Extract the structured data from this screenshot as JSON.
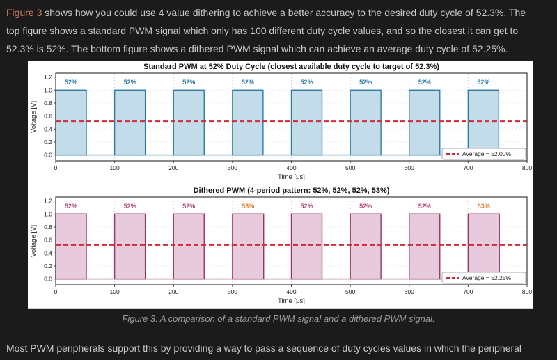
{
  "page": {
    "background": "#1b1b1b",
    "text_color": "#c9c9c9",
    "link_color": "#cd7d5f"
  },
  "intro_paragraph": {
    "link_text": "Figure 3",
    "line1_rest": " shows how you could use 4 value dithering to achieve a better accuracy to the desired duty cycle of 52.3%. The",
    "line2": "top figure shows a standard PWM signal which only has 100 different duty cycle values, and so the closest it can get to",
    "line3": "52.3% is 52%. The bottom figure shows a dithered PWM signal which can achieve an average duty cycle of 52.25%."
  },
  "figure_caption": "Figure 3: A comparison of a standard PWM signal and a dithered PWM signal.",
  "outro_paragraph": "Most PWM peripherals support this by providing a way to pass a sequence of duty cycles values in which the peripheral",
  "chart_data": [
    {
      "type": "line",
      "subtype": "pwm-square-wave",
      "title": "Standard PWM at 52% Duty Cycle (closest available duty cycle to target of 52.3%)",
      "xlabel": "Time [μs]",
      "ylabel": "Voltage [V]",
      "xlim": [
        0,
        800
      ],
      "ylim": [
        -0.09,
        1.26
      ],
      "xticks": [
        0,
        100,
        200,
        300,
        400,
        500,
        600,
        700,
        800
      ],
      "yticks": [
        0.0,
        0.2,
        0.4,
        0.6,
        0.8,
        1.0,
        1.2
      ],
      "grid": true,
      "period_us": 100,
      "high_v": 1.0,
      "low_v": 0.0,
      "duty_cycles_pct": [
        52,
        52,
        52,
        52,
        52,
        52,
        52,
        52
      ],
      "pulse_labels": [
        "52%",
        "52%",
        "52%",
        "52%",
        "52%",
        "52%",
        "52%",
        "52%"
      ],
      "pulse_label_colors": [
        "#2b7ca6",
        "#2b7ca6",
        "#2b7ca6",
        "#2b7ca6",
        "#2b7ca6",
        "#2b7ca6",
        "#2b7ca6",
        "#2b7ca6"
      ],
      "average_v": 0.52,
      "legend_label": "Average = 52.00%",
      "legend_position": "lower right",
      "colors": {
        "fill": "#c3dcea",
        "stroke": "#2e7ba3",
        "average_line": "#d4293a"
      }
    },
    {
      "type": "line",
      "subtype": "pwm-square-wave",
      "title": "Dithered PWM (4-period pattern: 52%, 52%, 52%, 53%)",
      "xlabel": "Time [μs]",
      "ylabel": "Voltage [V]",
      "xlim": [
        0,
        800
      ],
      "ylim": [
        -0.09,
        1.26
      ],
      "xticks": [
        0,
        100,
        200,
        300,
        400,
        500,
        600,
        700,
        800
      ],
      "yticks": [
        0.0,
        0.2,
        0.4,
        0.6,
        0.8,
        1.0,
        1.2
      ],
      "grid": true,
      "period_us": 100,
      "high_v": 1.0,
      "low_v": 0.0,
      "duty_cycles_pct": [
        52,
        52,
        52,
        53,
        52,
        52,
        52,
        53
      ],
      "pulse_labels": [
        "52%",
        "52%",
        "52%",
        "53%",
        "52%",
        "52%",
        "52%",
        "53%"
      ],
      "pulse_label_colors": [
        "#b3477b",
        "#b3477b",
        "#b3477b",
        "#e2823e",
        "#b3477b",
        "#b3477b",
        "#b3477b",
        "#e2823e"
      ],
      "average_v": 0.5225,
      "legend_label": "Average = 52.25%",
      "legend_position": "lower right",
      "colors": {
        "fill": "#e7cbdc",
        "stroke": "#97355f",
        "average_line": "#d4293a"
      }
    }
  ]
}
